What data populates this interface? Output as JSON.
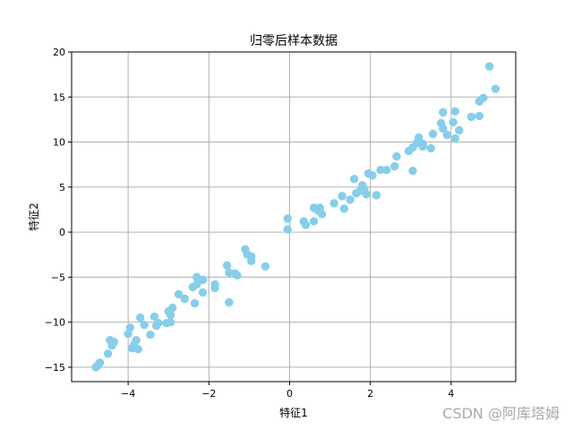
{
  "chart_data": {
    "type": "scatter",
    "title": "归零后样本数据",
    "xlabel": "特征1",
    "ylabel": "特征2",
    "xlim": [
      -5.4,
      5.6
    ],
    "ylim": [
      -16.6,
      20
    ],
    "xticks": [
      -4,
      -2,
      0,
      2,
      4
    ],
    "yticks": [
      -15,
      -10,
      -5,
      0,
      5,
      10,
      15,
      20
    ],
    "grid": true,
    "marker_color": "#87CEEB",
    "points": [
      [
        -4.8,
        -15.0
      ],
      [
        -4.75,
        -14.8
      ],
      [
        -4.7,
        -14.5
      ],
      [
        -4.5,
        -13.5
      ],
      [
        -4.45,
        -12.0
      ],
      [
        -4.4,
        -12.6
      ],
      [
        -4.35,
        -12.2
      ],
      [
        -4.0,
        -11.3
      ],
      [
        -3.95,
        -10.6
      ],
      [
        -3.9,
        -12.9
      ],
      [
        -3.85,
        -12.5
      ],
      [
        -3.8,
        -12.0
      ],
      [
        -3.75,
        -13.0
      ],
      [
        -3.7,
        -9.5
      ],
      [
        -3.6,
        -10.3
      ],
      [
        -3.45,
        -11.4
      ],
      [
        -3.35,
        -9.4
      ],
      [
        -3.3,
        -10.4
      ],
      [
        -3.25,
        -10.1
      ],
      [
        -3.05,
        -10.1
      ],
      [
        -3.0,
        -8.8
      ],
      [
        -2.95,
        -9.2
      ],
      [
        -2.9,
        -8.4
      ],
      [
        -2.95,
        -10.0
      ],
      [
        -2.75,
        -6.9
      ],
      [
        -2.6,
        -7.4
      ],
      [
        -2.4,
        -6.1
      ],
      [
        -2.35,
        -7.9
      ],
      [
        -2.3,
        -5.8
      ],
      [
        -2.3,
        -5.0
      ],
      [
        -2.15,
        -5.3
      ],
      [
        -2.15,
        -6.7
      ],
      [
        -1.85,
        -5.8
      ],
      [
        -1.85,
        -6.2
      ],
      [
        -1.55,
        -3.7
      ],
      [
        -1.5,
        -4.5
      ],
      [
        -1.5,
        -7.8
      ],
      [
        -1.35,
        -4.6
      ],
      [
        -1.3,
        -4.8
      ],
      [
        -1.1,
        -1.9
      ],
      [
        -1.05,
        -2.5
      ],
      [
        -0.95,
        -2.7
      ],
      [
        -0.95,
        -3.2
      ],
      [
        -0.6,
        -3.8
      ],
      [
        -0.05,
        1.5
      ],
      [
        -0.05,
        0.3
      ],
      [
        0.35,
        1.2
      ],
      [
        0.4,
        0.8
      ],
      [
        0.6,
        2.7
      ],
      [
        0.6,
        1.2
      ],
      [
        0.7,
        2.4
      ],
      [
        0.75,
        2.7
      ],
      [
        0.8,
        2.0
      ],
      [
        1.1,
        3.2
      ],
      [
        1.3,
        4.0
      ],
      [
        1.35,
        2.6
      ],
      [
        1.5,
        3.6
      ],
      [
        1.6,
        5.9
      ],
      [
        1.65,
        4.3
      ],
      [
        1.75,
        4.6
      ],
      [
        1.8,
        5.2
      ],
      [
        1.85,
        4.8
      ],
      [
        1.9,
        4.2
      ],
      [
        1.95,
        6.5
      ],
      [
        2.05,
        6.3
      ],
      [
        2.15,
        4.1
      ],
      [
        2.25,
        6.9
      ],
      [
        2.4,
        6.9
      ],
      [
        2.6,
        7.3
      ],
      [
        2.65,
        8.4
      ],
      [
        2.95,
        9.0
      ],
      [
        3.05,
        9.4
      ],
      [
        3.05,
        6.8
      ],
      [
        3.15,
        9.9
      ],
      [
        3.2,
        10.5
      ],
      [
        3.3,
        9.5
      ],
      [
        3.3,
        9.8
      ],
      [
        3.5,
        9.3
      ],
      [
        3.55,
        10.9
      ],
      [
        3.75,
        12.1
      ],
      [
        3.8,
        11.5
      ],
      [
        3.8,
        13.3
      ],
      [
        3.9,
        10.8
      ],
      [
        4.05,
        12.2
      ],
      [
        4.1,
        13.4
      ],
      [
        4.1,
        10.4
      ],
      [
        4.2,
        11.3
      ],
      [
        4.5,
        12.8
      ],
      [
        4.7,
        14.5
      ],
      [
        4.7,
        12.9
      ],
      [
        4.8,
        14.9
      ],
      [
        4.95,
        18.4
      ],
      [
        5.1,
        15.9
      ]
    ]
  },
  "watermark": "CSDN @阿库塔姆"
}
